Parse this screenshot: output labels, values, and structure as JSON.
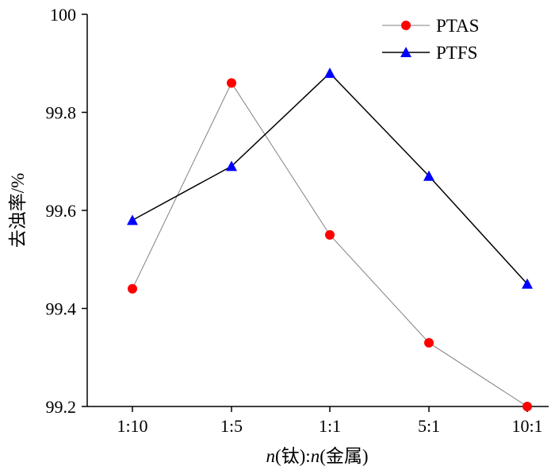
{
  "chart_data": {
    "type": "line",
    "title": "",
    "xlabel": "n(钛):n(金属)",
    "xlabel_parts": {
      "n1": "n",
      "p1": "(钛):",
      "n2": "n",
      "p2": "(金属)"
    },
    "ylabel": "去浊率/%",
    "categories": [
      "1:10",
      "1:5",
      "1:1",
      "5:1",
      "10:1"
    ],
    "ylim": [
      99.2,
      100
    ],
    "yticks": [
      "99.2",
      "99.4",
      "99.6",
      "99.8",
      "100"
    ],
    "yticks_values": [
      99.2,
      99.4,
      99.6,
      99.8,
      100
    ],
    "grid": false,
    "legend_position": "top-right",
    "series": [
      {
        "name": "PTAS",
        "values": [
          99.44,
          99.86,
          99.55,
          99.33,
          99.2
        ],
        "color": "#ff0000",
        "line_color": "#808080",
        "marker": "circle"
      },
      {
        "name": "PTFS",
        "values": [
          99.58,
          99.69,
          99.88,
          99.67,
          99.45
        ],
        "color": "#0000ff",
        "line_color": "#000000",
        "marker": "triangle"
      }
    ]
  }
}
